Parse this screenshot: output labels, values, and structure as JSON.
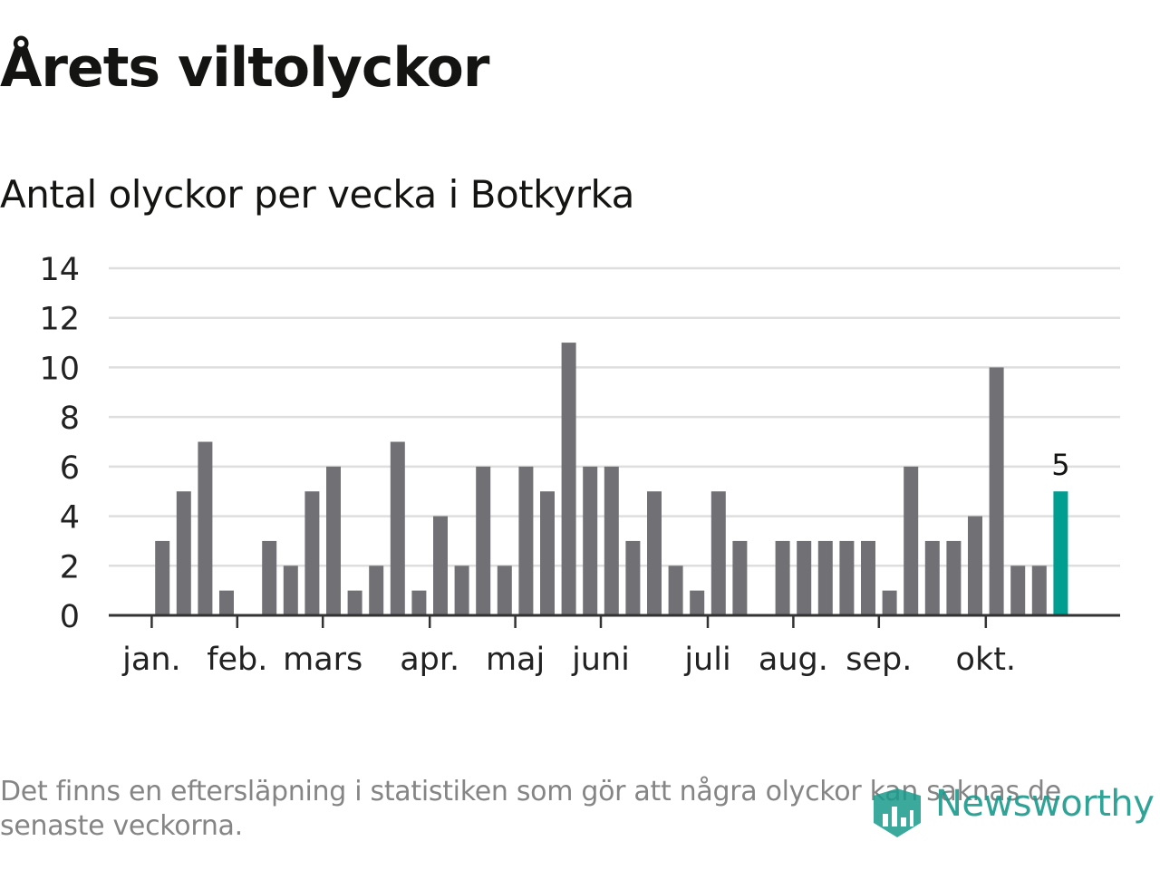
{
  "title": "Årets viltolyckor",
  "subtitle": "Antal olyckor per vecka i Botkyrka",
  "footnote": "Det finns en eftersläpning i statistiken som gör att några olyckor kan saknas de senaste veckorna.",
  "logo": {
    "text": "Newsworthy",
    "icon": "newsworthy-logo-icon"
  },
  "colors": {
    "bar": "#717075",
    "highlight": "#009e91",
    "grid": "#dedede",
    "axis": "#333333",
    "logo": "#1a9a8c"
  },
  "chart_data": {
    "type": "bar",
    "title": "Årets viltolyckor",
    "subtitle": "Antal olyckor per vecka i Botkyrka",
    "xlabel": "",
    "ylabel": "",
    "ylim": [
      0,
      14
    ],
    "yticks": [
      0,
      2,
      4,
      6,
      8,
      10,
      12,
      14
    ],
    "grid": true,
    "x": [
      1,
      2,
      3,
      4,
      5,
      6,
      7,
      8,
      9,
      10,
      11,
      12,
      13,
      14,
      15,
      16,
      17,
      18,
      19,
      20,
      21,
      22,
      23,
      24,
      25,
      26,
      27,
      28,
      29,
      30,
      31,
      32,
      33,
      34,
      35,
      36,
      37,
      38,
      39,
      40,
      41,
      42,
      43,
      44,
      45,
      46,
      47
    ],
    "values": [
      0,
      0,
      3,
      5,
      7,
      1,
      0,
      3,
      2,
      5,
      6,
      1,
      2,
      7,
      1,
      4,
      2,
      6,
      2,
      6,
      5,
      11,
      6,
      6,
      3,
      5,
      2,
      1,
      5,
      3,
      0,
      3,
      3,
      3,
      3,
      3,
      1,
      6,
      3,
      3,
      4,
      10,
      2,
      2,
      5,
      0,
      0
    ],
    "highlight_index": 44,
    "highlight_label": "5",
    "month_labels": [
      "jan.",
      "feb.",
      "mars",
      "apr.",
      "maj",
      "juni",
      "juli",
      "aug.",
      "sep.",
      "okt."
    ],
    "month_tick_x": [
      2.5,
      6.5,
      10.5,
      15.5,
      19.5,
      23.5,
      28.5,
      32.5,
      36.5,
      41.5
    ]
  }
}
